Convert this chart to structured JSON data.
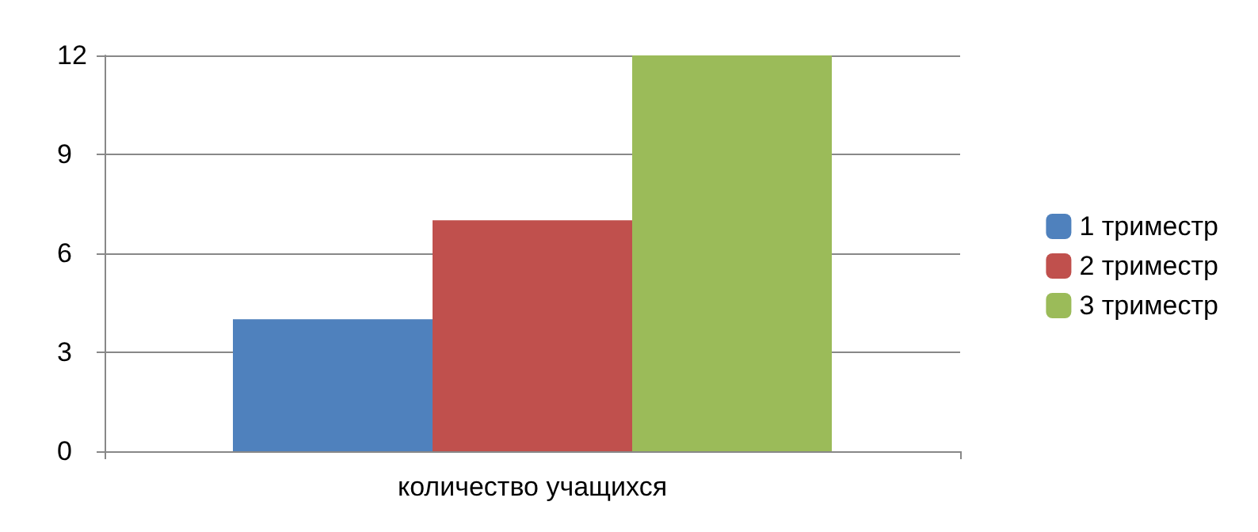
{
  "chart_data": {
    "type": "bar",
    "categories": [
      "количество учащихся"
    ],
    "series": [
      {
        "name": "1 триместр",
        "color": "#4f81bd",
        "values": [
          4
        ]
      },
      {
        "name": "2 триместр",
        "color": "#c0504d",
        "values": [
          7
        ]
      },
      {
        "name": "3 триместр",
        "color": "#9bbb59",
        "values": [
          12
        ]
      }
    ],
    "ylim": [
      0,
      12
    ],
    "yticks": [
      0,
      3,
      6,
      9,
      12
    ],
    "grid": "y",
    "legend": "right"
  }
}
